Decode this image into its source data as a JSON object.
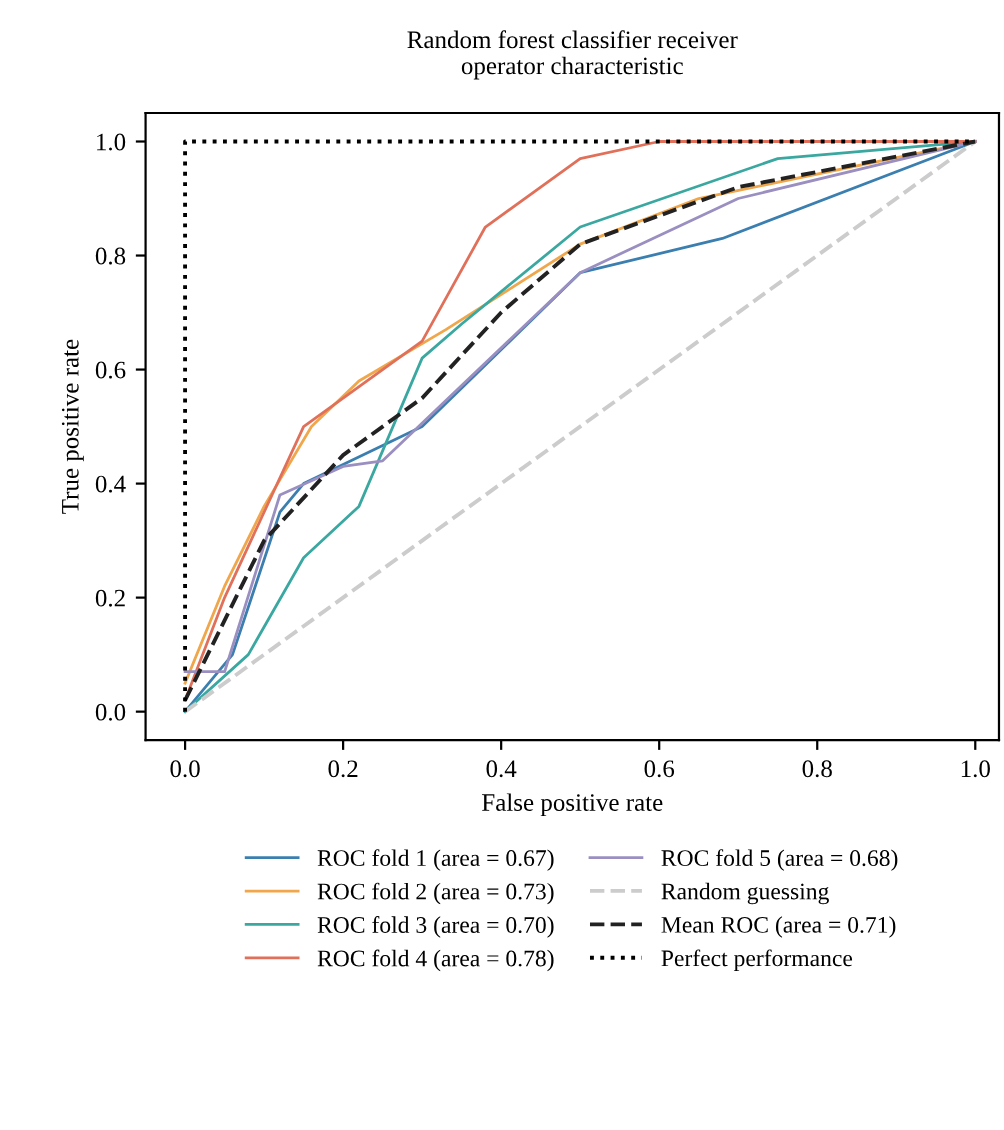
{
  "chart_data": {
    "type": "line",
    "title": "Random forest classifier receiver\noperator characteristic",
    "xlabel": "False positive rate",
    "ylabel": "True positive rate",
    "xlim": [
      -0.05,
      1.03
    ],
    "ylim": [
      -0.05,
      1.05
    ],
    "xticks": [
      {
        "value": 0,
        "label": "0.0"
      },
      0.2,
      0.4,
      0.6,
      0.8,
      {
        "value": 1,
        "label": "1.0"
      }
    ],
    "yticks": [
      {
        "value": 0,
        "label": "0.0"
      },
      0.2,
      0.4,
      0.6,
      0.8,
      {
        "value": 1,
        "label": "1.0"
      }
    ],
    "grid": false,
    "legend": "bottom",
    "line_style": "solid",
    "marker": "none",
    "series": [
      {
        "name": "ROC fold 1 (area = 0.67)",
        "color": "#3b7fb0",
        "x": [
          0,
          0.06,
          0.12,
          0.15,
          0.3,
          0.5,
          0.68,
          1
        ],
        "values": [
          0,
          0.1,
          0.35,
          0.4,
          0.5,
          0.77,
          0.83,
          1
        ]
      },
      {
        "name": "ROC fold 2 (area = 0.73)",
        "color": "#f0a64a",
        "x": [
          0,
          0.05,
          0.1,
          0.16,
          0.22,
          0.33,
          0.5,
          0.65,
          1
        ],
        "values": [
          0.05,
          0.22,
          0.36,
          0.5,
          0.58,
          0.67,
          0.82,
          0.9,
          1
        ]
      },
      {
        "name": "ROC fold 3 (area = 0.70)",
        "color": "#3aa8a0",
        "x": [
          0,
          0.08,
          0.15,
          0.22,
          0.3,
          0.35,
          0.5,
          0.75,
          1
        ],
        "values": [
          0,
          0.1,
          0.27,
          0.36,
          0.62,
          0.68,
          0.85,
          0.97,
          1
        ]
      },
      {
        "name": "ROC fold 4 (area = 0.78)",
        "color": "#e0705a",
        "x": [
          0,
          0.05,
          0.15,
          0.3,
          0.38,
          0.5,
          0.6,
          1
        ],
        "values": [
          0.02,
          0.2,
          0.5,
          0.65,
          0.85,
          0.97,
          1,
          1
        ]
      },
      {
        "name": "ROC fold 5 (area = 0.68)",
        "color": "#9a8fc0",
        "x": [
          0,
          0.05,
          0.12,
          0.2,
          0.25,
          0.5,
          0.7,
          1
        ],
        "values": [
          0.07,
          0.07,
          0.38,
          0.43,
          0.44,
          0.77,
          0.9,
          1
        ]
      },
      {
        "name": "Random guessing",
        "color": "#cccccc",
        "line_style": "dashed",
        "x": [
          0,
          1
        ],
        "values": [
          0,
          1
        ]
      },
      {
        "name": "Mean ROC (area = 0.71)",
        "color": "#222222",
        "line_style": "dashed",
        "x": [
          0,
          0.1,
          0.2,
          0.3,
          0.4,
          0.5,
          0.7,
          1
        ],
        "values": [
          0.02,
          0.3,
          0.45,
          0.55,
          0.7,
          0.82,
          0.92,
          1
        ]
      },
      {
        "name": "Perfect performance",
        "color": "#000000",
        "line_style": "dotted",
        "x": [
          0,
          0,
          1
        ],
        "values": [
          0,
          1,
          1
        ]
      }
    ]
  }
}
